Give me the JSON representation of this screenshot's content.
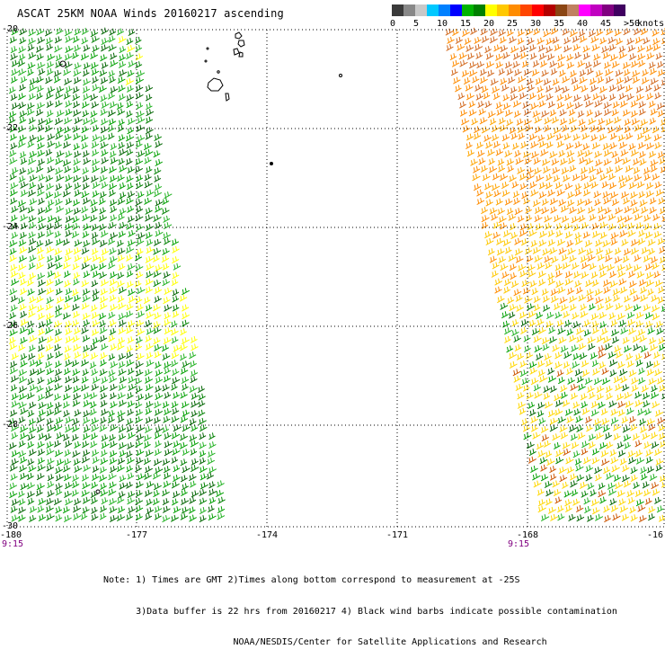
{
  "title": "ASCAT 25KM NOAA Winds 20160217 ascending",
  "colorbar": {
    "colors": [
      "#3a3a3a",
      "#888888",
      "#c8c8c8",
      "#00c8ff",
      "#0080ff",
      "#0000ff",
      "#00b400",
      "#008000",
      "#ffff00",
      "#ffc800",
      "#ff8c00",
      "#ff4500",
      "#ff0000",
      "#b40000",
      "#8b4513",
      "#c08060",
      "#ff00ff",
      "#c000c0",
      "#800080",
      "#400060"
    ],
    "labels": [
      "0",
      "5",
      "10",
      "15",
      "20",
      "25",
      "30",
      "35",
      "40",
      "45",
      ">50"
    ],
    "unit": "knots"
  },
  "map": {
    "lat_labels": [
      "-20",
      "-22",
      "-24",
      "-26",
      "-28",
      "-30"
    ],
    "lon_labels": [
      "-180",
      "-177",
      "-174",
      "-171",
      "-168",
      "-16"
    ],
    "time_labels": [
      "9:15",
      "9:15"
    ]
  },
  "notes": [
    "Note: 1) Times are GMT 2)Times along bottom correspond to measurement at -25S",
    "      3)Data buffer is 22 hrs from 20160217 4) Black wind barbs indicate possible contamination",
    "                        NOAA/NESDIS/Center for Satellite Applications and Research"
  ]
}
